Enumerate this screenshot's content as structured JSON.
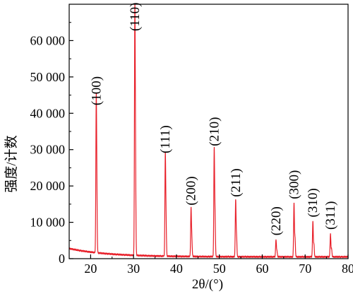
{
  "chart_data": {
    "type": "line",
    "xlabel": "2θ/(°)",
    "ylabel": "强度/计数",
    "xlim": [
      15,
      80
    ],
    "ylim": [
      0,
      70000
    ],
    "x_ticks": [
      20,
      30,
      40,
      50,
      60,
      70,
      80
    ],
    "x_tick_labels": [
      "20",
      "30",
      "40",
      "50",
      "60",
      "70",
      "80"
    ],
    "y_ticks": [
      0,
      10000,
      20000,
      30000,
      40000,
      50000,
      60000
    ],
    "y_tick_labels": [
      "0",
      "10 000",
      "20 000",
      "30 000",
      "40 000",
      "50 000",
      "60 000"
    ],
    "grid": false,
    "line_color": "#e8202a",
    "series": [
      {
        "peaks": [
          {
            "x": 21.3,
            "y": 41000,
            "label": "(100)"
          },
          {
            "x": 30.3,
            "y": 65000,
            "label": "(110)"
          },
          {
            "x": 37.4,
            "y": 27800,
            "label": "(111)"
          },
          {
            "x": 43.4,
            "y": 13500,
            "label": "(200)"
          },
          {
            "x": 48.8,
            "y": 29800,
            "label": "(210)"
          },
          {
            "x": 53.8,
            "y": 15800,
            "label": "(211)"
          },
          {
            "x": 63.2,
            "y": 5200,
            "label": "(220)"
          },
          {
            "x": 67.4,
            "y": 15200,
            "label": "(300)"
          },
          {
            "x": 71.8,
            "y": 10200,
            "label": "(310)"
          },
          {
            "x": 75.9,
            "y": 6800,
            "label": "(311)"
          }
        ]
      }
    ]
  }
}
